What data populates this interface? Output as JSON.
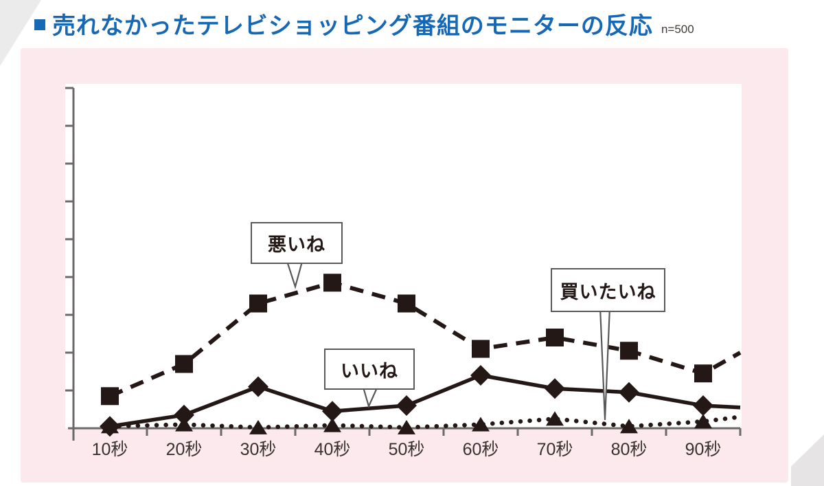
{
  "page": {
    "title": {
      "bullet": "■",
      "text": "売れなかったテレビショッピング番組のモニターの反応",
      "sample": "n=500"
    }
  },
  "colors": {
    "title_blue": "#1668b5",
    "panel_pink": "#fce9ed",
    "plot_white": "#ffffff",
    "ink": "#231815",
    "axis_gray": "#6d6968",
    "callout_border": "#595757",
    "xlabel_color": "#38322e"
  },
  "chart_data": {
    "type": "line",
    "title": "売れなかったテレビショッピング番組のモニターの反応",
    "sample_size": "n=500",
    "categories": [
      "10秒",
      "20秒",
      "30秒",
      "40秒",
      "50秒",
      "60秒",
      "70秒",
      "80秒",
      "90秒"
    ],
    "x_values_seconds": [
      10,
      20,
      30,
      40,
      50,
      60,
      70,
      80,
      90
    ],
    "xlabel": "",
    "ylabel": "",
    "y_axis": {
      "tick_labels_visible": false,
      "tick_count": 10,
      "units": "unlabeled",
      "ylim": [
        0,
        9
      ]
    },
    "grid": false,
    "legend_position": "callout-balloons-on-plot",
    "series": [
      {
        "name": "悪いね",
        "marker": "square",
        "line_style": "dashed",
        "values": [
          0.85,
          1.7,
          3.3,
          3.85,
          3.3,
          2.1,
          2.4,
          2.05,
          1.45
        ],
        "trailing_value": 2.0
      },
      {
        "name": "いいね",
        "marker": "diamond",
        "line_style": "solid",
        "values": [
          0.05,
          0.35,
          1.1,
          0.45,
          0.6,
          1.4,
          1.05,
          0.95,
          0.6
        ],
        "trailing_value": 0.55
      },
      {
        "name": "買いたいね",
        "marker": "triangle",
        "line_style": "dotted",
        "values": [
          0.05,
          0.1,
          0.02,
          0.08,
          0.02,
          0.1,
          0.25,
          0.05,
          0.18
        ],
        "trailing_value": 0.3
      }
    ],
    "annotations": [
      {
        "id": "warui-ne-balloon",
        "label": "悪いね",
        "points_to": "dashed square series near 40秒"
      },
      {
        "id": "ii-ne-balloon",
        "label": "いいね",
        "points_to": "solid diamond series near 50秒"
      },
      {
        "id": "kaitai-ne-balloon",
        "label": "買いたいね",
        "points_to": "dotted triangle series near 80秒"
      }
    ]
  }
}
